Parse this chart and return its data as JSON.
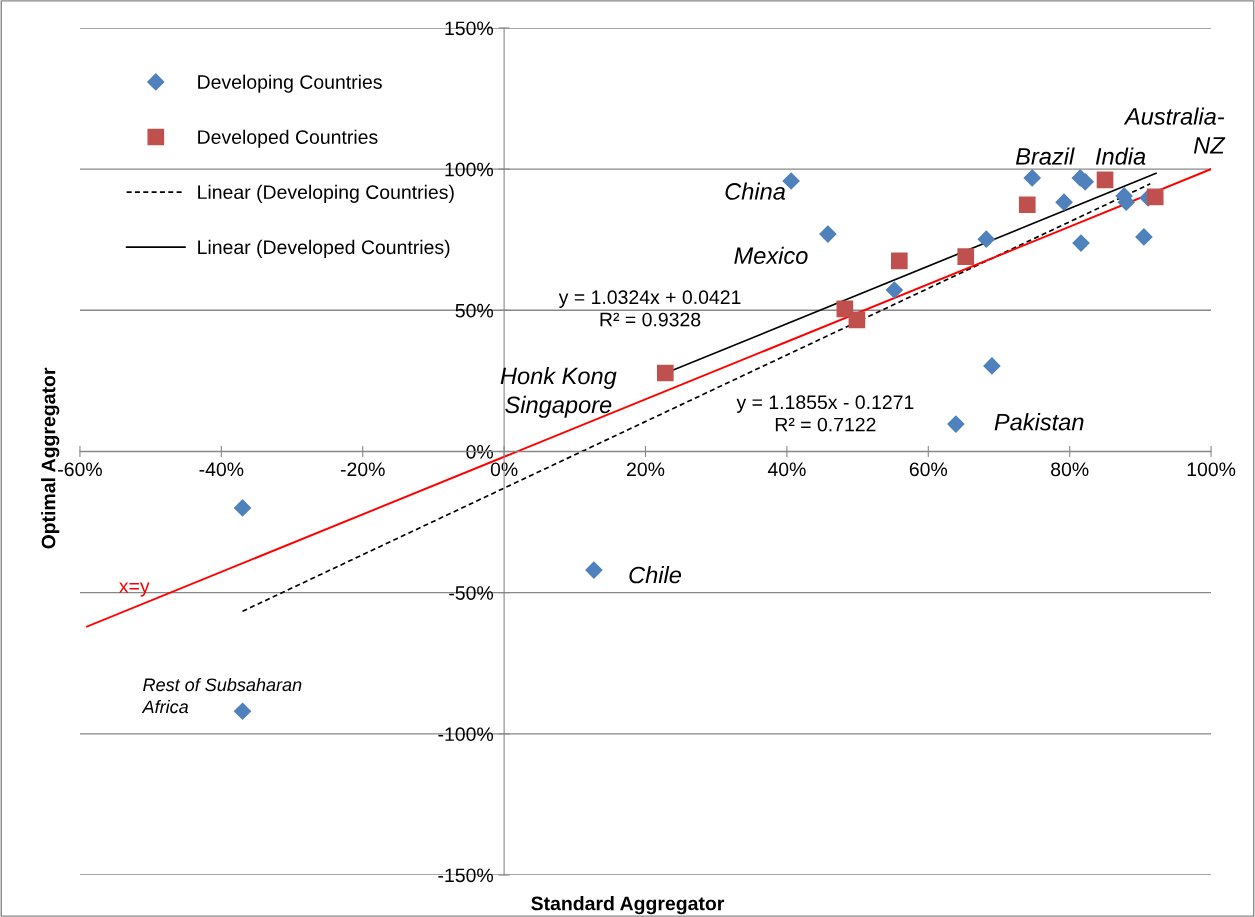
{
  "chart_data": {
    "type": "scatter",
    "xlabel": "Standard Aggregator",
    "ylabel": "Optimal Aggregator",
    "xlim": [
      -60,
      100
    ],
    "ylim": [
      -150,
      150
    ],
    "xticks": [
      {
        "value": -60,
        "label": "-60%"
      },
      {
        "value": -40,
        "label": "-40%"
      },
      {
        "value": -20,
        "label": "-20%"
      },
      {
        "value": 0,
        "label": "0%"
      },
      {
        "value": 20,
        "label": "20%"
      },
      {
        "value": 40,
        "label": "40%"
      },
      {
        "value": 60,
        "label": "60%"
      },
      {
        "value": 80,
        "label": "80%"
      },
      {
        "value": 100,
        "label": "100%"
      }
    ],
    "yticks": [
      {
        "value": -150,
        "label": "-150%"
      },
      {
        "value": -100,
        "label": "-100%"
      },
      {
        "value": -50,
        "label": "-50%"
      },
      {
        "value": 0,
        "label": "0%"
      },
      {
        "value": 50,
        "label": "50%"
      },
      {
        "value": 100,
        "label": "100%"
      },
      {
        "value": 150,
        "label": "150%"
      }
    ],
    "grid": "y",
    "legend": "top left",
    "series": [
      {
        "name": "Developing Countries",
        "marker": "diamond",
        "color": "#4f81bd",
        "x": [
          -37,
          -37,
          12.7,
          63.9,
          69.0,
          55.2,
          45.8,
          40.6,
          68.2,
          74.7,
          79.2,
          81.5,
          82.2,
          81.6,
          87.7,
          88.0,
          90.5,
          91.1
        ],
        "values": [
          -20,
          -92,
          -42,
          9.7,
          30.3,
          57.2,
          77.0,
          95.8,
          75.2,
          96.9,
          88.3,
          96.9,
          95.5,
          73.8,
          90.5,
          88.3,
          76.0,
          89.8
        ]
      },
      {
        "name": "Developed Countries",
        "marker": "square",
        "color": "#c0504d",
        "x": [
          22.8,
          48.2,
          49.9,
          55.9,
          65.3,
          74.0,
          85.0,
          92.1
        ],
        "values": [
          27.8,
          50.5,
          46.6,
          67.5,
          69.0,
          87.4,
          96.2,
          90.2
        ]
      },
      {
        "name": "Linear (Developing Countries)",
        "type": "line",
        "line_style": "dashed",
        "color": "#000000",
        "x": [
          -37,
          91.4
        ],
        "values": [
          -56.6,
          94.8
        ]
      },
      {
        "name": "Linear (Developed Countries)",
        "type": "line",
        "line_style": "solid",
        "color": "#000000",
        "x": [
          22.8,
          92.2
        ],
        "values": [
          27.7,
          98.5
        ]
      },
      {
        "name": "x=y",
        "type": "line",
        "line_style": "solid",
        "color": "#ff0000",
        "x": [
          -59,
          100
        ],
        "values": [
          -62,
          100
        ]
      }
    ],
    "annotations": [
      {
        "text": "China",
        "x": 40.6,
        "y": 95.8
      },
      {
        "text": "Mexico",
        "x": 45.8,
        "y": 77.0
      },
      {
        "text": "Brazil",
        "x": 74.7,
        "y": 96.9
      },
      {
        "text": "India",
        "x": 81.5,
        "y": 96.9
      },
      {
        "text": "Australia-\nNZ",
        "x": 92.1,
        "y": 90.2
      },
      {
        "text": "Pakistan",
        "x": 63.9,
        "y": 9.7
      },
      {
        "text": "Chile",
        "x": 12.7,
        "y": -42
      },
      {
        "text": "Honk Kong\nSingapore",
        "x": 22.8,
        "y": 27.8
      },
      {
        "text": "Rest of Subsaharan\nAfrica",
        "x": -37,
        "y": -92
      },
      "y = 1.0324x + 0.0421\nR² = 0.9328",
      "y = 1.1855x - 0.1271\nR² = 0.7122"
    ]
  }
}
